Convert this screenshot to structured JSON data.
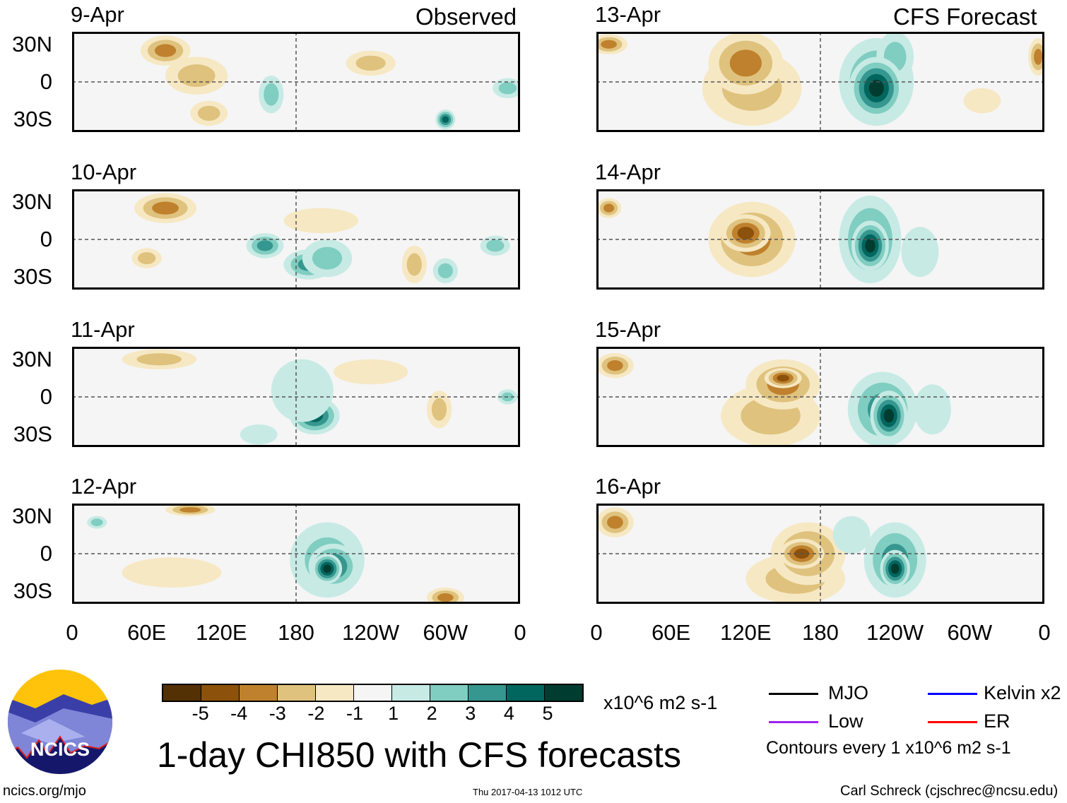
{
  "headers": {
    "observed": "Observed",
    "forecast": "CFS Forecast"
  },
  "panels": [
    {
      "date": "9-Apr",
      "group": "observed"
    },
    {
      "date": "10-Apr",
      "group": "observed"
    },
    {
      "date": "11-Apr",
      "group": "observed"
    },
    {
      "date": "12-Apr",
      "group": "observed"
    },
    {
      "date": "13-Apr",
      "group": "forecast"
    },
    {
      "date": "14-Apr",
      "group": "forecast"
    },
    {
      "date": "15-Apr",
      "group": "forecast"
    },
    {
      "date": "16-Apr",
      "group": "forecast"
    }
  ],
  "lat_ticks": [
    "30N",
    "0",
    "30S"
  ],
  "lon_ticks": [
    "0",
    "60E",
    "120E",
    "180",
    "120W",
    "60W",
    "0"
  ],
  "colorbar": {
    "labels": [
      "-5",
      "-4",
      "-3",
      "-2",
      "-1",
      "1",
      "2",
      "3",
      "4",
      "5"
    ],
    "colors": [
      "#543005",
      "#8c510a",
      "#bf812d",
      "#dfc27d",
      "#f6e8c3",
      "#f5f5f5",
      "#c7eae5",
      "#80cdc1",
      "#35978f",
      "#01665e",
      "#003c30"
    ],
    "units": "x10^6 m2 s-1"
  },
  "legend": {
    "items": [
      {
        "label": "MJO",
        "color": "#000000"
      },
      {
        "label": "Kelvin x2",
        "color": "#0000ff"
      },
      {
        "label": "Low",
        "color": "#a020f0"
      },
      {
        "label": "ER",
        "color": "#ff0000"
      }
    ],
    "note": "Contours every 1 x10^6 m2 s-1"
  },
  "title": "1-day CHI850 with CFS forecasts",
  "logo_text": "NCICS",
  "footer": {
    "url": "ncics.org/mjo",
    "timestamp": "Thu 2017-04-13 1012 UTC",
    "credit": "Carl Schreck (cjschrec@ncsu.edu)"
  }
}
